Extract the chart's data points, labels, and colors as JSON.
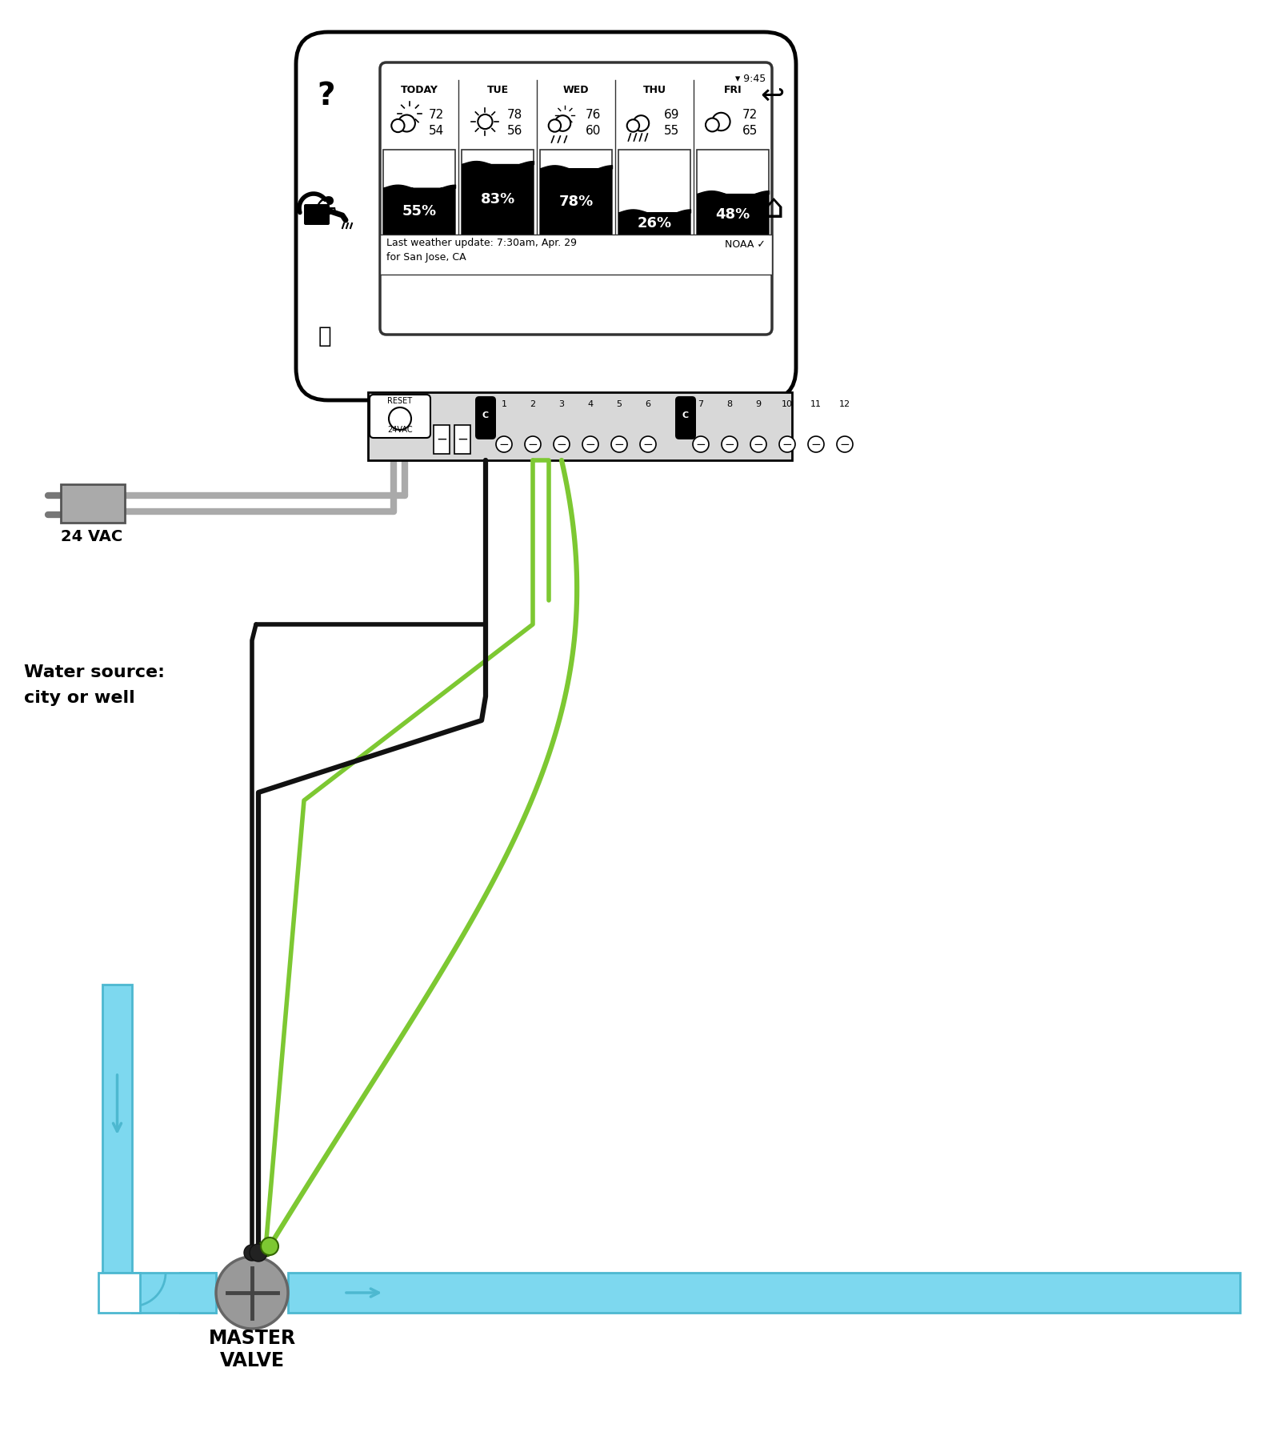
{
  "bg_color": "#ffffff",
  "days": [
    "TODAY",
    "TUE",
    "WED",
    "THU",
    "FRI"
  ],
  "temps_hi": [
    72,
    78,
    76,
    69,
    72
  ],
  "temps_lo": [
    54,
    56,
    60,
    55,
    65
  ],
  "percents": [
    "55%",
    "83%",
    "78%",
    "26%",
    "48%"
  ],
  "pct_vals": [
    55,
    83,
    78,
    26,
    48
  ],
  "weather_note_line1": "Last weather update: 7:30am, Apr. 29",
  "weather_note_line2": "for San Jose, CA",
  "vac_label": "24 VAC",
  "water_source_label1": "Water source:",
  "water_source_label2": "city or well",
  "master_valve_label": "MASTER\nVALVE",
  "wire_black": "#111111",
  "wire_green": "#7dc832",
  "wire_gray": "#aaaaaa",
  "pipe_blue_fill": "#7dd8ef",
  "pipe_blue_edge": "#4db8d0",
  "valve_gray_fill": "#999999",
  "valve_gray_edge": "#666666",
  "controller_lw": 3.5,
  "screen_lw": 2.0,
  "time_text": "9:45",
  "noaa_text": "NOAA"
}
